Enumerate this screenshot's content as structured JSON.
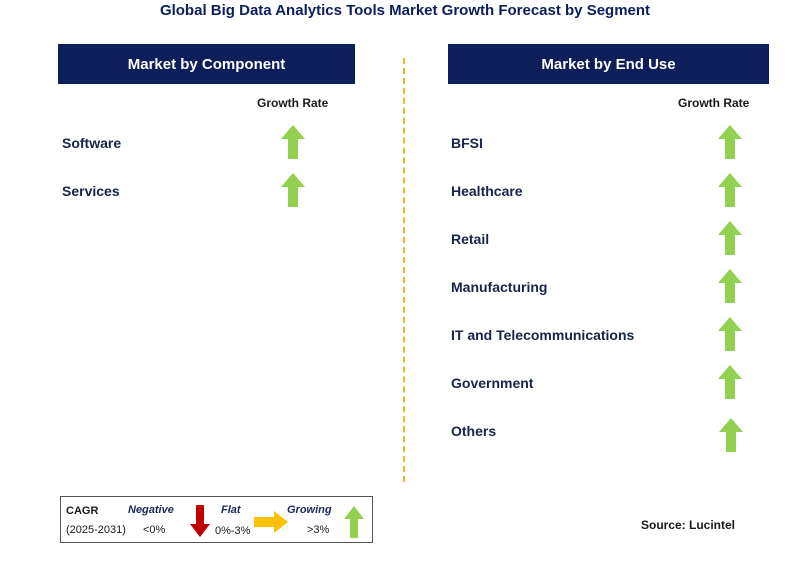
{
  "title": "Global Big Data Analytics Tools Market Growth Forecast by Segment",
  "left_panel": {
    "header": "Market by Component",
    "growth_label": "Growth Rate",
    "items": [
      {
        "label": "Software",
        "trend": "growing"
      },
      {
        "label": "Services",
        "trend": "growing"
      }
    ]
  },
  "right_panel": {
    "header": "Market by End Use",
    "growth_label": "Growth Rate",
    "items": [
      {
        "label": "BFSI",
        "trend": "growing"
      },
      {
        "label": "Healthcare",
        "trend": "growing"
      },
      {
        "label": "Retail",
        "trend": "growing"
      },
      {
        "label": "Manufacturing",
        "trend": "growing"
      },
      {
        "label": "IT and Telecommunications",
        "trend": "growing"
      },
      {
        "label": "Government",
        "trend": "growing"
      },
      {
        "label": "Others",
        "trend": "growing"
      }
    ]
  },
  "legend": {
    "cagr_label": "CAGR",
    "period": "(2025-2031)",
    "negative": {
      "label": "Negative",
      "range": "<0%",
      "icon": "down-arrow-icon",
      "color": "#c00000"
    },
    "flat": {
      "label": "Flat",
      "range": "0%-3%",
      "icon": "right-arrow-icon",
      "color": "#ffc000"
    },
    "growing": {
      "label": "Growing",
      "range": ">3%",
      "icon": "up-arrow-icon",
      "color": "#92d050"
    }
  },
  "source": "Source: Lucintel",
  "colors": {
    "header_bg": "#0c1f5b",
    "divider": "#f0b429",
    "up_arrow": "#92d050"
  }
}
